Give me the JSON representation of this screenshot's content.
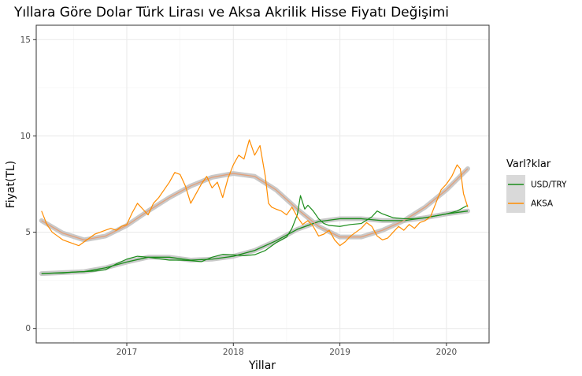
{
  "chart_data": {
    "type": "line",
    "title": "Yıllara Göre Dolar Türk Lirası ve Aksa Akrilik Hisse Fiyatı Değişimi",
    "xlabel": "Yillar",
    "ylabel": "Fiyat(TL)",
    "xlim": [
      2016.15,
      2020.4
    ],
    "ylim": [
      -0.75,
      15.75
    ],
    "x_ticks": [
      2017,
      2018,
      2019,
      2020
    ],
    "x_tick_labels": [
      "2017",
      "2018",
      "2019",
      "2020"
    ],
    "y_ticks": [
      0,
      5,
      10,
      15
    ],
    "y_tick_labels": [
      "0",
      "5",
      "10",
      "15"
    ],
    "grid": true,
    "legend": {
      "title": "Varl?klar",
      "position": "right",
      "entries": [
        "USD/TRY",
        "AKSA"
      ]
    },
    "colors": {
      "USD/TRY": "#1a8c1a",
      "AKSA": "#ff8c00",
      "smooth_band": "#bfbfbf",
      "smooth_line_aksa": "#e3a07a",
      "smooth_line_usd": "#1a8c1a"
    },
    "series": [
      {
        "name": "USD/TRY",
        "x": [
          2016.2,
          2016.3,
          2016.4,
          2016.5,
          2016.6,
          2016.7,
          2016.8,
          2016.9,
          2017.0,
          2017.1,
          2017.2,
          2017.3,
          2017.4,
          2017.5,
          2017.6,
          2017.7,
          2017.8,
          2017.9,
          2018.0,
          2018.1,
          2018.2,
          2018.3,
          2018.4,
          2018.5,
          2018.55,
          2018.6,
          2018.63,
          2018.67,
          2018.7,
          2018.75,
          2018.8,
          2018.85,
          2018.9,
          2019.0,
          2019.1,
          2019.2,
          2019.3,
          2019.35,
          2019.4,
          2019.5,
          2019.6,
          2019.7,
          2019.8,
          2019.9,
          2020.0,
          2020.1,
          2020.2
        ],
        "y": [
          2.85,
          2.87,
          2.88,
          2.93,
          2.95,
          2.98,
          3.05,
          3.35,
          3.6,
          3.75,
          3.7,
          3.62,
          3.55,
          3.55,
          3.52,
          3.47,
          3.7,
          3.85,
          3.82,
          3.78,
          3.83,
          4.05,
          4.45,
          4.75,
          5.2,
          5.9,
          6.9,
          6.2,
          6.4,
          6.1,
          5.7,
          5.45,
          5.35,
          5.3,
          5.4,
          5.45,
          5.8,
          6.1,
          5.95,
          5.75,
          5.7,
          5.7,
          5.75,
          5.85,
          5.95,
          6.1,
          6.4
        ]
      },
      {
        "name": "AKSA",
        "x": [
          2016.2,
          2016.25,
          2016.3,
          2016.35,
          2016.4,
          2016.45,
          2016.5,
          2016.55,
          2016.6,
          2016.65,
          2016.7,
          2016.75,
          2016.8,
          2016.85,
          2016.9,
          2016.95,
          2017.0,
          2017.05,
          2017.1,
          2017.15,
          2017.2,
          2017.25,
          2017.3,
          2017.35,
          2017.4,
          2017.45,
          2017.5,
          2017.55,
          2017.6,
          2017.65,
          2017.7,
          2017.75,
          2017.8,
          2017.85,
          2017.9,
          2017.95,
          2018.0,
          2018.05,
          2018.1,
          2018.15,
          2018.2,
          2018.25,
          2018.3,
          2018.33,
          2018.36,
          2018.4,
          2018.45,
          2018.5,
          2018.55,
          2018.6,
          2018.65,
          2018.7,
          2018.75,
          2018.8,
          2018.85,
          2018.9,
          2018.95,
          2019.0,
          2019.05,
          2019.1,
          2019.15,
          2019.2,
          2019.25,
          2019.3,
          2019.35,
          2019.4,
          2019.45,
          2019.5,
          2019.55,
          2019.6,
          2019.65,
          2019.7,
          2019.75,
          2019.8,
          2019.85,
          2019.9,
          2019.95,
          2020.0,
          2020.05,
          2020.1,
          2020.13,
          2020.16,
          2020.2
        ],
        "y": [
          6.1,
          5.4,
          5.0,
          4.8,
          4.6,
          4.5,
          4.4,
          4.3,
          4.5,
          4.7,
          4.9,
          5.0,
          5.1,
          5.2,
          5.1,
          5.3,
          5.4,
          6.0,
          6.5,
          6.2,
          5.9,
          6.5,
          6.8,
          7.2,
          7.6,
          8.1,
          8.0,
          7.4,
          6.5,
          7.0,
          7.5,
          7.9,
          7.3,
          7.6,
          6.8,
          7.8,
          8.5,
          9.0,
          8.8,
          9.8,
          9.0,
          9.5,
          7.9,
          6.5,
          6.3,
          6.2,
          6.1,
          5.9,
          6.3,
          5.8,
          5.4,
          5.6,
          5.3,
          4.8,
          4.9,
          5.1,
          4.6,
          4.3,
          4.5,
          4.8,
          5.0,
          5.2,
          5.5,
          5.3,
          4.8,
          4.6,
          4.7,
          5.0,
          5.3,
          5.1,
          5.4,
          5.2,
          5.5,
          5.6,
          5.8,
          6.5,
          7.2,
          7.5,
          7.9,
          8.5,
          8.3,
          7.0,
          6.3
        ]
      }
    ],
    "smooth_fits": [
      {
        "name": "USD/TRY",
        "x": [
          2016.2,
          2016.4,
          2016.6,
          2016.8,
          2017.0,
          2017.2,
          2017.4,
          2017.6,
          2017.8,
          2018.0,
          2018.2,
          2018.4,
          2018.6,
          2018.8,
          2019.0,
          2019.2,
          2019.4,
          2019.6,
          2019.8,
          2020.0,
          2020.2
        ],
        "y": [
          2.85,
          2.9,
          2.95,
          3.15,
          3.45,
          3.7,
          3.7,
          3.55,
          3.6,
          3.75,
          4.05,
          4.55,
          5.15,
          5.55,
          5.7,
          5.7,
          5.6,
          5.6,
          5.75,
          5.95,
          6.1
        ]
      },
      {
        "name": "AKSA",
        "x": [
          2016.2,
          2016.4,
          2016.6,
          2016.8,
          2017.0,
          2017.2,
          2017.4,
          2017.6,
          2017.8,
          2018.0,
          2018.2,
          2018.4,
          2018.6,
          2018.8,
          2019.0,
          2019.2,
          2019.4,
          2019.6,
          2019.8,
          2020.0,
          2020.2
        ],
        "y": [
          5.6,
          4.95,
          4.6,
          4.8,
          5.35,
          6.1,
          6.8,
          7.4,
          7.85,
          8.05,
          7.9,
          7.2,
          6.2,
          5.3,
          4.75,
          4.75,
          5.1,
          5.6,
          6.3,
          7.2,
          8.3
        ]
      }
    ]
  }
}
